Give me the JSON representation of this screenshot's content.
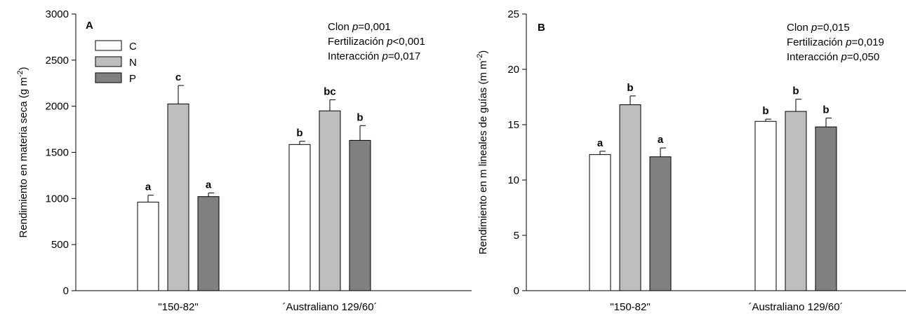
{
  "colors": {
    "C": "#ffffff",
    "N": "#bebebe",
    "P": "#808080"
  },
  "legend": [
    "C",
    "N",
    "P"
  ],
  "categories": [
    "\"150-82\"",
    "´Australiano 129/60´"
  ],
  "chart_data": [
    {
      "type": "bar",
      "panel": "A",
      "ylabel": "Rendimiento en materia seca (g m-2)",
      "ylabel_main": "Rendimiento en materia seca (g m",
      "ylabel_sup": "-2",
      "ylabel_end": ")",
      "ylim": [
        0,
        3000
      ],
      "yticks": [
        "0",
        "500",
        "1000",
        "1500",
        "2000",
        "2500",
        "3000"
      ],
      "categories": [
        "\"150-82\"",
        "´Australiano 129/60´"
      ],
      "series": [
        {
          "name": "C",
          "values": [
            960,
            1585
          ],
          "errors": [
            75,
            35
          ],
          "letters": [
            "a",
            "b"
          ]
        },
        {
          "name": "N",
          "values": [
            2025,
            1950
          ],
          "errors": [
            200,
            120
          ],
          "letters": [
            "c",
            "bc"
          ]
        },
        {
          "name": "P",
          "values": [
            1020,
            1630
          ],
          "errors": [
            40,
            160
          ],
          "letters": [
            "a",
            "b"
          ]
        }
      ],
      "stats": [
        {
          "label": "Clon ",
          "p": "p",
          "value": "=0,001"
        },
        {
          "label": "Fertilización ",
          "p": "p",
          "value": "<0,001"
        },
        {
          "label": "Interacción ",
          "p": "p",
          "value": "=0,017"
        }
      ]
    },
    {
      "type": "bar",
      "panel": "B",
      "ylabel": "Rendimiento en m lineales de guías (m m-2)",
      "ylabel_main": "Rendimiento en m lineales de guías (m m",
      "ylabel_sup": "-2",
      "ylabel_end": ")",
      "ylim": [
        0,
        25
      ],
      "yticks": [
        "0",
        "5",
        "10",
        "15",
        "20",
        "25"
      ],
      "categories": [
        "\"150-82\"",
        "´Australiano 129/60´"
      ],
      "series": [
        {
          "name": "C",
          "values": [
            12.3,
            15.3
          ],
          "errors": [
            0.3,
            0.2
          ],
          "letters": [
            "a",
            "b"
          ]
        },
        {
          "name": "N",
          "values": [
            16.8,
            16.2
          ],
          "errors": [
            0.8,
            1.1
          ],
          "letters": [
            "b",
            "b"
          ]
        },
        {
          "name": "P",
          "values": [
            12.1,
            14.8
          ],
          "errors": [
            0.8,
            0.8
          ],
          "letters": [
            "a",
            "b"
          ]
        }
      ],
      "stats": [
        {
          "label": "Clon ",
          "p": "p",
          "value": "=0,015"
        },
        {
          "label": "Fertilización ",
          "p": "p",
          "value": "=0,019"
        },
        {
          "label": "Interacción ",
          "p": "p",
          "value": "=0,050"
        }
      ]
    }
  ]
}
